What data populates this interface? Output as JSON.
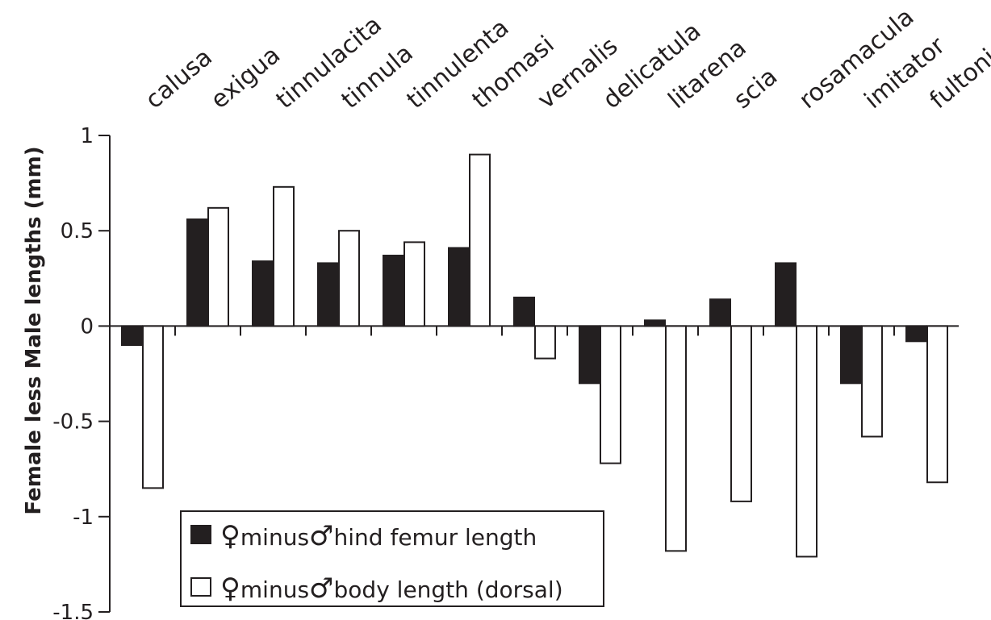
{
  "chart_data": {
    "type": "bar",
    "categories": [
      "calusa",
      "exigua",
      "tinnulacita",
      "tinnula",
      "tinnulenta",
      "thomasi",
      "vernalis",
      "delicatula",
      "litarena",
      "scia",
      "rosamacula",
      "imitator",
      "fultoni"
    ],
    "series": [
      {
        "name": "♀minus♂hind femur length",
        "legend": {
          "female_symbol": "♀",
          "minus": "minus",
          "male_symbol": "♂",
          "text": "hind femur length"
        },
        "color": "#231f20",
        "values": [
          -0.1,
          0.56,
          0.34,
          0.33,
          0.37,
          0.41,
          0.15,
          -0.3,
          0.03,
          0.14,
          0.33,
          -0.3,
          -0.08
        ]
      },
      {
        "name": "♀minus♂body length (dorsal)",
        "legend": {
          "female_symbol": "♀",
          "minus": "minus",
          "male_symbol": "♂",
          "text": "body length (dorsal)"
        },
        "color": "#ffffff",
        "values": [
          -0.85,
          0.62,
          0.73,
          0.5,
          0.44,
          0.9,
          -0.17,
          -0.72,
          -1.18,
          -0.92,
          -1.21,
          -0.58,
          -0.82
        ]
      }
    ],
    "title": "",
    "xlabel": "",
    "ylabel": "Female less Male lengths (mm)",
    "ylim": [
      -1.5,
      1
    ],
    "yticks": [
      1,
      0.5,
      0,
      -0.5,
      -1,
      -1.5
    ],
    "ytick_labels": [
      "1",
      "0.5",
      "0",
      "-0.5",
      "-1",
      "-1.5"
    ],
    "grid": false,
    "legend_position": "bottom-left",
    "category_label_position": "top-rotated"
  }
}
